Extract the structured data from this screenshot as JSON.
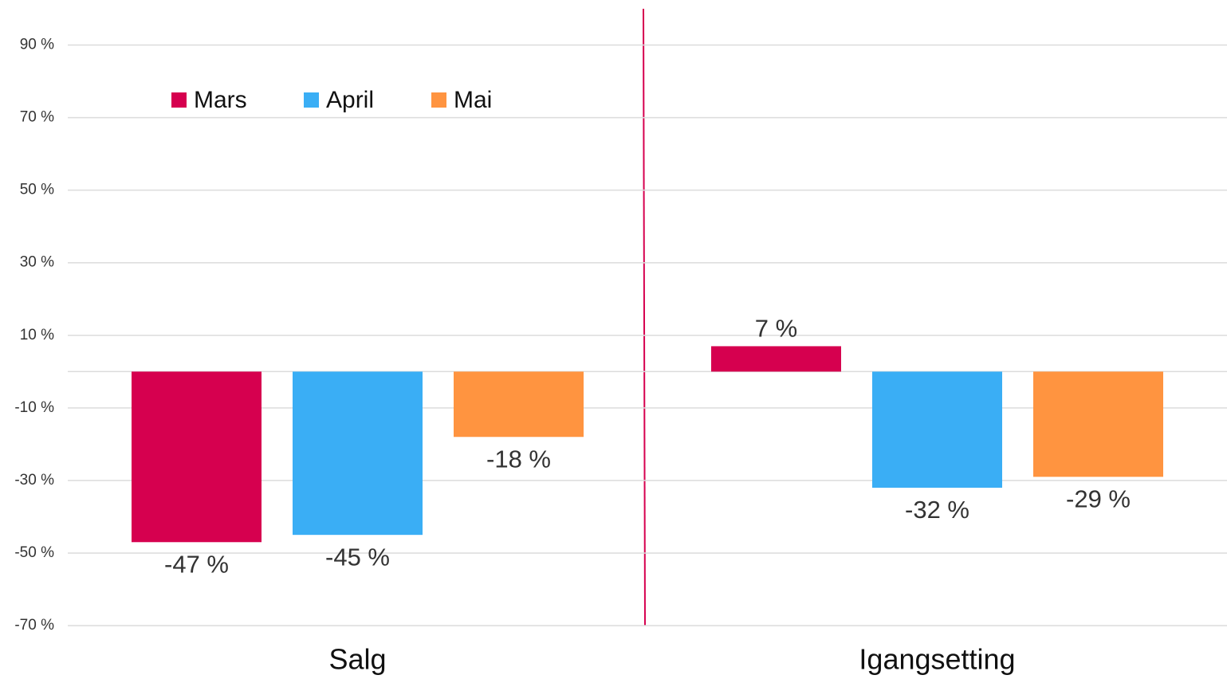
{
  "chart_data": {
    "type": "bar",
    "categories": [
      "Salg",
      "Igangsetting"
    ],
    "series": [
      {
        "name": "Mars",
        "color": "#d6004f",
        "values": [
          -47,
          7
        ],
        "value_labels": [
          "-47 %",
          "7 %"
        ]
      },
      {
        "name": "April",
        "color": "#3aaef5",
        "values": [
          -45,
          -32
        ],
        "value_labels": [
          "-45 %",
          "-32 %"
        ]
      },
      {
        "name": "Mai",
        "color": "#ff9440",
        "values": [
          -18,
          -29
        ],
        "value_labels": [
          "-18 %",
          "-29 %"
        ]
      }
    ],
    "ylim": [
      -70,
      100
    ],
    "yticks": [
      {
        "value": 90,
        "label": "90 %"
      },
      {
        "value": 70,
        "label": "70 %"
      },
      {
        "value": 50,
        "label": "50 %"
      },
      {
        "value": 30,
        "label": "30 %"
      },
      {
        "value": 10,
        "label": "10 %"
      },
      {
        "value": -10,
        "label": "-10 %"
      },
      {
        "value": -30,
        "label": "-30 %"
      },
      {
        "value": -50,
        "label": "-50 %"
      },
      {
        "value": -70,
        "label": "-70 %"
      }
    ],
    "grid": true,
    "legend": "top-left"
  }
}
